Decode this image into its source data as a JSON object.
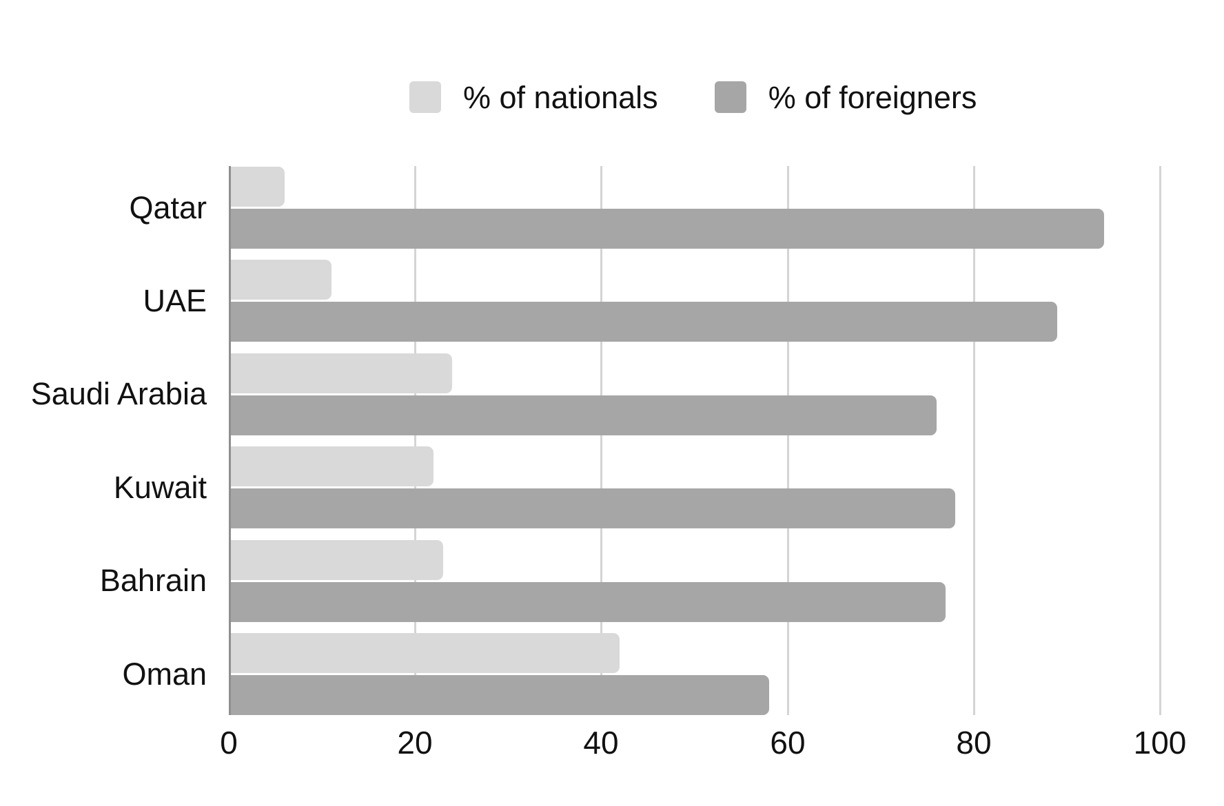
{
  "chart_data": {
    "type": "bar",
    "orientation": "horizontal",
    "title": "",
    "categories": [
      "Qatar",
      "UAE",
      "Saudi Arabia",
      "Kuwait",
      "Bahrain",
      "Oman"
    ],
    "series": [
      {
        "name": "% of nationals",
        "color": "#d9d9d9",
        "values": [
          6,
          11,
          24,
          22,
          23,
          42
        ]
      },
      {
        "name": "% of foreigners",
        "color": "#a6a6a6",
        "values": [
          94,
          89,
          76,
          78,
          77,
          58
        ]
      }
    ],
    "xlabel": "",
    "ylabel": "",
    "xlim": [
      0,
      100
    ],
    "x_ticks": [
      0,
      20,
      40,
      60,
      80,
      100
    ],
    "grid": true,
    "legend_position": "top",
    "background": "#ffffff",
    "gridline_color": "#d4d4d4",
    "axis_line_color": "#8f8f8f",
    "text_color": "#111111"
  },
  "legend": {
    "items": [
      {
        "label": "% of nationals",
        "color": "#d9d9d9"
      },
      {
        "label": "% of foreigners",
        "color": "#a6a6a6"
      }
    ]
  }
}
